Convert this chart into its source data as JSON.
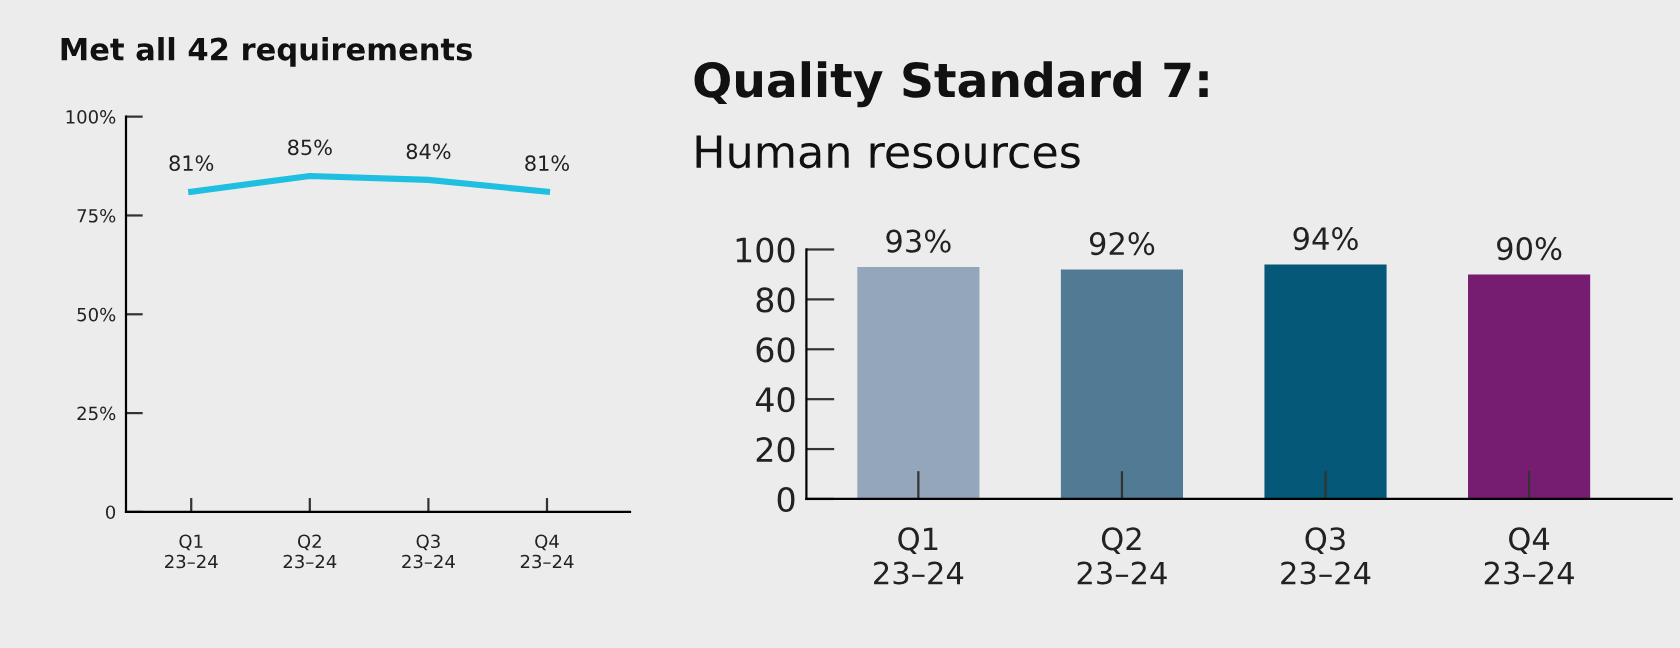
{
  "chart_data": [
    {
      "type": "line",
      "title": "Met all 42 requirements",
      "categories": [
        "Q1\n23–24",
        "Q2\n23–24",
        "Q3\n23–24",
        "Q4\n23–24"
      ],
      "series": [
        {
          "color": "#1ebfe0",
          "values": [
            81,
            85,
            84,
            81
          ],
          "value_labels": [
            "81%",
            "85%",
            "84%",
            "81%"
          ]
        }
      ],
      "ylim": [
        0,
        100
      ],
      "yticks": [
        {
          "value": 0,
          "label": "0"
        },
        {
          "value": 25,
          "label": "25%"
        },
        {
          "value": 50,
          "label": "50%"
        },
        {
          "value": 75,
          "label": "75%"
        },
        {
          "value": 100,
          "label": "100%"
        }
      ],
      "grid": false,
      "legend": false,
      "marker": "none",
      "line_style": "solid"
    },
    {
      "type": "bar",
      "title": "Quality Standard 7:",
      "subtitle": "Human resources",
      "categories": [
        "Q1\n23–24",
        "Q2\n23–24",
        "Q3\n23–24",
        "Q4\n23–24"
      ],
      "values": [
        93,
        92,
        94,
        90
      ],
      "colors": [
        "#93a6ba",
        "#517a95",
        "#055877",
        "#761d71"
      ],
      "value_labels": [
        "93%",
        "92%",
        "94%",
        "90%"
      ],
      "ylim": [
        0,
        100
      ],
      "yticks": [
        0,
        20,
        40,
        60,
        80,
        100
      ],
      "grid": false,
      "legend": false
    }
  ]
}
